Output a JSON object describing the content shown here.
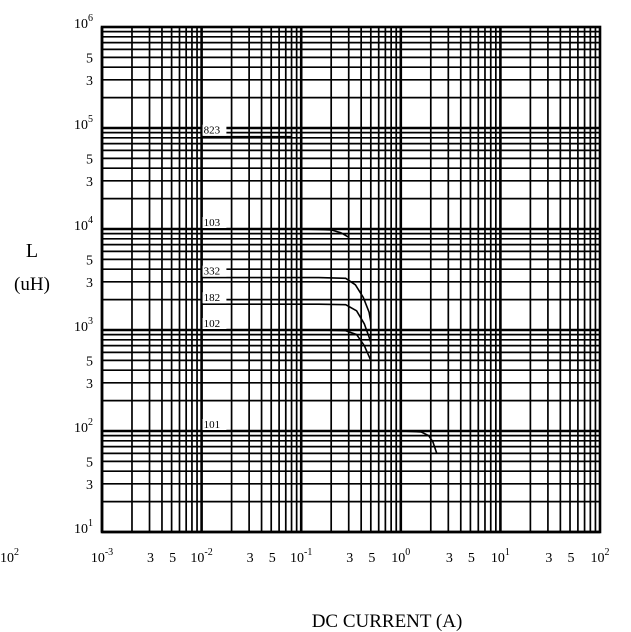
{
  "chart_data": {
    "type": "line",
    "xscale": "log",
    "yscale": "log",
    "xlim": [
      0.001,
      100
    ],
    "ylim": [
      10,
      1000000
    ],
    "grid": true,
    "xlabel": "DC CURRENT (A)",
    "ylabel_main": "L",
    "ylabel_unit": "(uH)",
    "y_ticks": [
      {
        "value": 1000000,
        "base": "10",
        "exp": "6"
      },
      {
        "value": 500000,
        "base": "5",
        "exp": ""
      },
      {
        "value": 300000,
        "base": "3",
        "exp": ""
      },
      {
        "value": 100000,
        "base": "10",
        "exp": "5"
      },
      {
        "value": 50000,
        "base": "5",
        "exp": ""
      },
      {
        "value": 30000,
        "base": "3",
        "exp": ""
      },
      {
        "value": 10000,
        "base": "10",
        "exp": "4"
      },
      {
        "value": 5000,
        "base": "5",
        "exp": ""
      },
      {
        "value": 3000,
        "base": "3",
        "exp": ""
      },
      {
        "value": 1000,
        "base": "10",
        "exp": "3"
      },
      {
        "value": 500,
        "base": "5",
        "exp": ""
      },
      {
        "value": 300,
        "base": "3",
        "exp": ""
      },
      {
        "value": 100,
        "base": "10",
        "exp": "2"
      },
      {
        "value": 50,
        "base": "5",
        "exp": ""
      },
      {
        "value": 30,
        "base": "3",
        "exp": ""
      },
      {
        "value": 10,
        "base": "10",
        "exp": "1"
      }
    ],
    "x_ticks": [
      {
        "value": 0.001,
        "base": "10",
        "exp": "-3"
      },
      {
        "value": 0.003,
        "base": "3",
        "exp": ""
      },
      {
        "value": 0.005,
        "base": "5",
        "exp": ""
      },
      {
        "value": 0.01,
        "base": "10",
        "exp": "-2"
      },
      {
        "value": 0.03,
        "base": "3",
        "exp": ""
      },
      {
        "value": 0.05,
        "base": "5",
        "exp": ""
      },
      {
        "value": 0.1,
        "base": "10",
        "exp": "-1"
      },
      {
        "value": 0.3,
        "base": "3",
        "exp": ""
      },
      {
        "value": 0.5,
        "base": "5",
        "exp": ""
      },
      {
        "value": 1,
        "base": "10",
        "exp": "0"
      },
      {
        "value": 3,
        "base": "3",
        "exp": ""
      },
      {
        "value": 5,
        "base": "5",
        "exp": ""
      },
      {
        "value": 10,
        "base": "10",
        "exp": "1"
      },
      {
        "value": 30,
        "base": "3",
        "exp": ""
      },
      {
        "value": 50,
        "base": "5",
        "exp": ""
      },
      {
        "value": 100,
        "base": "10",
        "exp": "2"
      }
    ],
    "stray_label": {
      "base": "10",
      "exp": "2"
    },
    "series": [
      {
        "name": "823",
        "points": [
          [
            0.01,
            82000
          ],
          [
            0.02,
            82000
          ],
          [
            0.05,
            82000
          ],
          [
            0.08,
            82000
          ]
        ]
      },
      {
        "name": "103",
        "points": [
          [
            0.01,
            10000
          ],
          [
            0.1,
            10000
          ],
          [
            0.2,
            9800
          ],
          [
            0.25,
            9200
          ],
          [
            0.3,
            8300
          ]
        ]
      },
      {
        "name": "332",
        "points": [
          [
            0.01,
            3300
          ],
          [
            0.15,
            3300
          ],
          [
            0.28,
            3250
          ],
          [
            0.35,
            2800
          ],
          [
            0.42,
            2100
          ],
          [
            0.48,
            1500
          ],
          [
            0.5,
            1200
          ]
        ]
      },
      {
        "name": "182",
        "points": [
          [
            0.01,
            1800
          ],
          [
            0.15,
            1800
          ],
          [
            0.28,
            1780
          ],
          [
            0.36,
            1550
          ],
          [
            0.43,
            1150
          ],
          [
            0.48,
            850
          ],
          [
            0.5,
            750
          ]
        ]
      },
      {
        "name": "102",
        "points": [
          [
            0.01,
            1000
          ],
          [
            0.15,
            1000
          ],
          [
            0.28,
            985
          ],
          [
            0.36,
            900
          ],
          [
            0.43,
            700
          ],
          [
            0.5,
            500
          ]
        ]
      },
      {
        "name": "101",
        "points": [
          [
            0.01,
            100
          ],
          [
            0.5,
            100
          ],
          [
            1.0,
            100
          ],
          [
            1.6,
            98
          ],
          [
            1.9,
            90
          ],
          [
            2.1,
            78
          ],
          [
            2.2,
            68
          ],
          [
            2.3,
            60
          ]
        ]
      }
    ]
  }
}
